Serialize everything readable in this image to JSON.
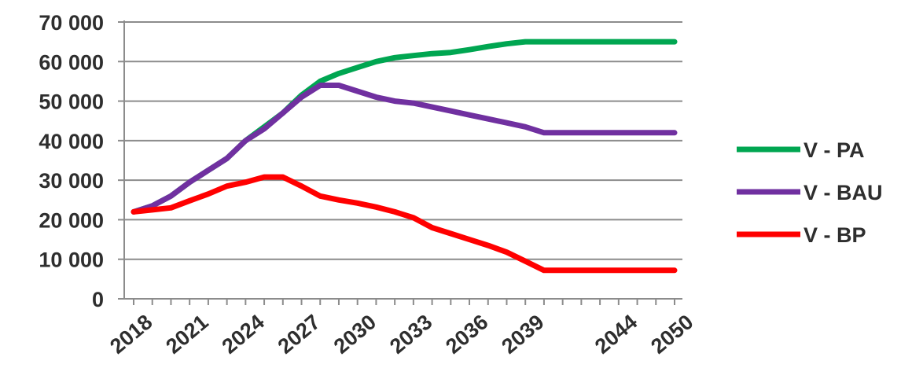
{
  "chart_data": {
    "type": "line",
    "x": [
      "2018",
      "2019",
      "2020",
      "2021",
      "2022",
      "2023",
      "2024",
      "2025",
      "2026",
      "2027",
      "2028",
      "2029",
      "2030",
      "2031",
      "2032",
      "2033",
      "2034",
      "2035",
      "2036",
      "2037",
      "2038",
      "2039",
      "2040",
      "2041",
      "2042",
      "2043",
      "2044",
      "2045",
      "2046",
      "2050"
    ],
    "x_tick_labels": [
      "2018",
      "2021",
      "2024",
      "2027",
      "2030",
      "2033",
      "2036",
      "2039",
      "2044",
      "2050"
    ],
    "x_tick_indices": [
      0,
      3,
      6,
      9,
      12,
      15,
      18,
      21,
      26,
      29
    ],
    "series": [
      {
        "name": "V - PA",
        "color": "#00a651",
        "values": [
          22000,
          23500,
          26000,
          29500,
          32500,
          35500,
          40000,
          43500,
          47000,
          51500,
          55000,
          57000,
          58500,
          60000,
          61000,
          61500,
          62000,
          62300,
          63000,
          63800,
          64500,
          65000,
          65000,
          65000,
          65000,
          65000,
          65000,
          65000,
          65000,
          65000
        ]
      },
      {
        "name": "V - BAU",
        "color": "#7030a0",
        "values": [
          22000,
          23500,
          26000,
          29500,
          32500,
          35500,
          40000,
          43000,
          47000,
          51000,
          54000,
          54000,
          52500,
          51000,
          50000,
          49500,
          48500,
          47500,
          46500,
          45500,
          44500,
          43500,
          42000,
          42000,
          42000,
          42000,
          42000,
          42000,
          42000,
          42000
        ]
      },
      {
        "name": "V - BP",
        "color": "#ff0000",
        "values": [
          22000,
          22500,
          23000,
          24800,
          26500,
          28500,
          29500,
          30800,
          30800,
          28500,
          26000,
          25000,
          24200,
          23200,
          22000,
          20500,
          18000,
          16500,
          15000,
          13500,
          11800,
          9500,
          7200,
          7200,
          7200,
          7200,
          7200,
          7200,
          7200,
          7200
        ]
      }
    ],
    "y_ticks": [
      "0",
      "10 000",
      "20 000",
      "30 000",
      "40 000",
      "50 000",
      "60 000",
      "70 000"
    ],
    "ylim": [
      0,
      70000
    ],
    "grid": true,
    "legend": "right",
    "title": "",
    "xlabel": "",
    "ylabel": ""
  }
}
